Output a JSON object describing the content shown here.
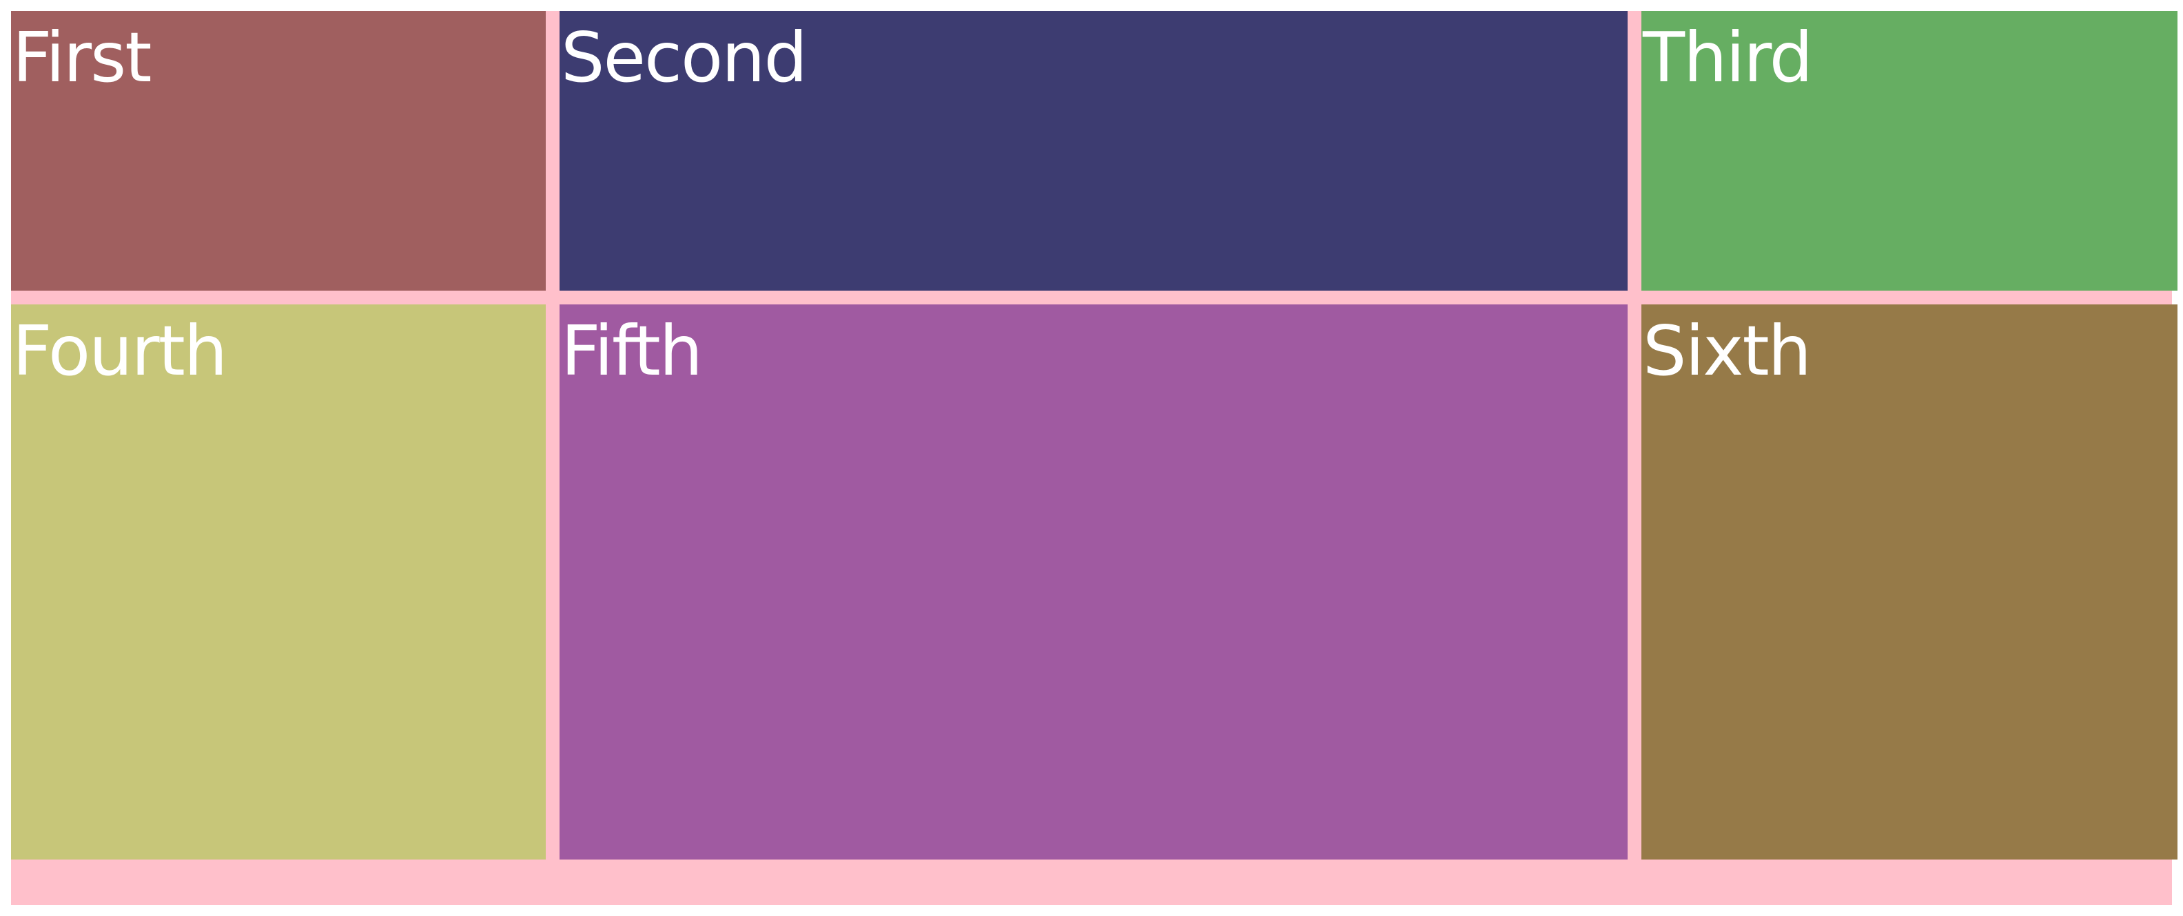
{
  "page": {
    "background": "#ffffff",
    "container_background": "#ffc0cb"
  },
  "cells": [
    {
      "label": "First",
      "color": "#a05f5f"
    },
    {
      "label": "Second",
      "color": "#3d3c71"
    },
    {
      "label": "Third",
      "color": "#66ae62"
    },
    {
      "label": "Fourth",
      "color": "#c7c679"
    },
    {
      "label": "Fifth",
      "color": "#a05aa1"
    },
    {
      "label": "Sixth",
      "color": "#967a48"
    }
  ]
}
